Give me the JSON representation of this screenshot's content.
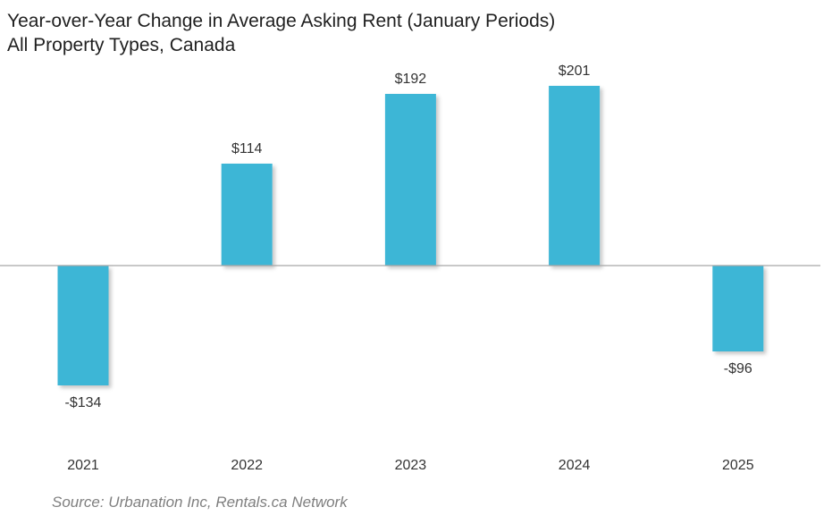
{
  "chart_data": {
    "type": "bar",
    "title": "Year-over-Year Change in Average Asking Rent (January Periods)",
    "subtitle": "All Property Types, Canada",
    "categories": [
      "2021",
      "2022",
      "2023",
      "2024",
      "2025"
    ],
    "values": [
      -134,
      114,
      192,
      201,
      -96
    ],
    "data_labels": [
      "-$134",
      "$114",
      "$192",
      "$201",
      "-$96"
    ],
    "xlabel": "",
    "ylabel": "",
    "ylim": [
      -190,
      250
    ],
    "grid": false,
    "legend": "none",
    "bar_color": "#3db6d6",
    "axis_color": "#a6a6a6"
  },
  "source": "Source: Urbanation Inc, Rentals.ca Network"
}
